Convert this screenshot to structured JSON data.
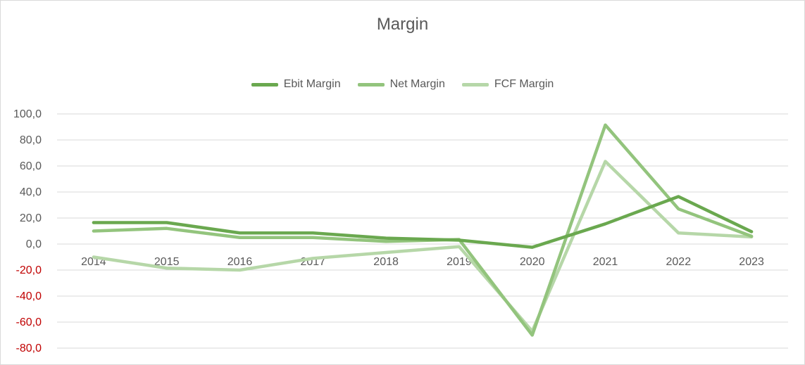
{
  "chart_data": {
    "type": "line",
    "title": "Margin",
    "categories": [
      "2014",
      "2015",
      "2016",
      "2017",
      "2018",
      "2019",
      "2020",
      "2021",
      "2022",
      "2023"
    ],
    "ylim": [
      -80,
      100
    ],
    "ytick_values": [
      100,
      80,
      60,
      40,
      20,
      0,
      -20,
      -40,
      -60,
      -80
    ],
    "ytick_labels": [
      "100,0",
      "80,0",
      "60,0",
      "40,0",
      "20,0",
      "0,0",
      "-20,0",
      "-40,0",
      "-60,0",
      "-80,0"
    ],
    "negative_tick_color": "#c00000",
    "positive_tick_color": "#595959",
    "grid": true,
    "legend_position": "top",
    "series": [
      {
        "name": "Ebit Margin",
        "color": "#6aa84f",
        "values": [
          16.5,
          16.5,
          8.5,
          8.5,
          4.5,
          3.0,
          -2.5,
          15.5,
          36.5,
          9.5
        ]
      },
      {
        "name": "Net Margin",
        "color": "#93c47d",
        "values": [
          10.0,
          12.0,
          5.0,
          5.0,
          2.0,
          3.5,
          -70.0,
          91.5,
          27.0,
          6.0
        ]
      },
      {
        "name": "FCF Margin",
        "color": "#b6d7a8",
        "values": [
          -10.0,
          -18.5,
          -20.0,
          -11.0,
          -6.5,
          -2.0,
          -67.0,
          63.5,
          8.5,
          5.5
        ]
      }
    ]
  }
}
